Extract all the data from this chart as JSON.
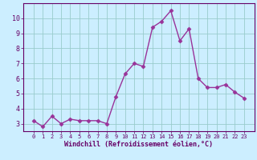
{
  "x": [
    0,
    1,
    2,
    3,
    4,
    5,
    6,
    7,
    8,
    9,
    10,
    11,
    12,
    13,
    14,
    15,
    16,
    17,
    18,
    19,
    20,
    21,
    22,
    23
  ],
  "y": [
    3.2,
    2.8,
    3.5,
    3.0,
    3.3,
    3.2,
    3.2,
    3.2,
    3.0,
    4.8,
    6.3,
    7.0,
    6.8,
    9.4,
    9.8,
    10.5,
    8.5,
    9.3,
    6.0,
    5.4,
    5.4,
    5.6,
    5.1,
    4.7
  ],
  "line_color": "#993399",
  "marker": "D",
  "marker_size": 2.5,
  "bg_color": "#cceeff",
  "grid_color": "#99cccc",
  "xlabel": "Windchill (Refroidissement éolien,°C)",
  "xlabel_color": "#660066",
  "tick_color": "#660066",
  "ylim": [
    2.5,
    11.0
  ],
  "yticks": [
    3,
    4,
    5,
    6,
    7,
    8,
    9,
    10
  ],
  "xticks": [
    0,
    1,
    2,
    3,
    4,
    5,
    6,
    7,
    8,
    9,
    10,
    11,
    12,
    13,
    14,
    15,
    16,
    17,
    18,
    19,
    20,
    21,
    22,
    23
  ],
  "spine_color": "#660066",
  "line_width": 1.0
}
